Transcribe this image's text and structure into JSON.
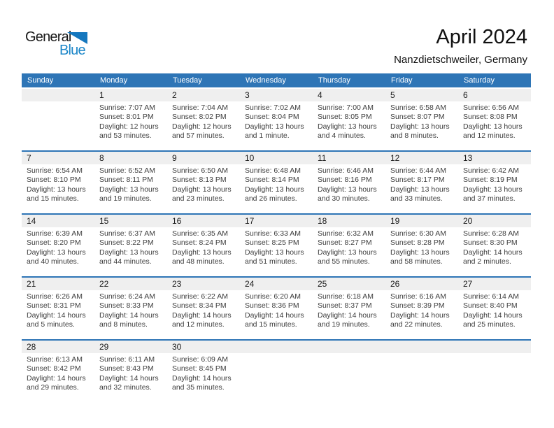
{
  "logo": {
    "general": "General",
    "blue": "Blue"
  },
  "header": {
    "title": "April 2024",
    "subtitle": "Nanzdietschweiler, Germany"
  },
  "colors": {
    "header_bg": "#2e75b6",
    "week_separator": "#2e75b6",
    "day_band_bg": "#efefef",
    "logo_blue": "#1b86c8",
    "logo_triangle": "#1577be"
  },
  "calendar": {
    "day_headers": [
      "Sunday",
      "Monday",
      "Tuesday",
      "Wednesday",
      "Thursday",
      "Friday",
      "Saturday"
    ],
    "weeks": [
      [
        {
          "day": "",
          "lines": []
        },
        {
          "day": "1",
          "lines": [
            "Sunrise: 7:07 AM",
            "Sunset: 8:01 PM",
            "Daylight: 12 hours",
            "and 53 minutes."
          ]
        },
        {
          "day": "2",
          "lines": [
            "Sunrise: 7:04 AM",
            "Sunset: 8:02 PM",
            "Daylight: 12 hours",
            "and 57 minutes."
          ]
        },
        {
          "day": "3",
          "lines": [
            "Sunrise: 7:02 AM",
            "Sunset: 8:04 PM",
            "Daylight: 13 hours",
            "and 1 minute."
          ]
        },
        {
          "day": "4",
          "lines": [
            "Sunrise: 7:00 AM",
            "Sunset: 8:05 PM",
            "Daylight: 13 hours",
            "and 4 minutes."
          ]
        },
        {
          "day": "5",
          "lines": [
            "Sunrise: 6:58 AM",
            "Sunset: 8:07 PM",
            "Daylight: 13 hours",
            "and 8 minutes."
          ]
        },
        {
          "day": "6",
          "lines": [
            "Sunrise: 6:56 AM",
            "Sunset: 8:08 PM",
            "Daylight: 13 hours",
            "and 12 minutes."
          ]
        }
      ],
      [
        {
          "day": "7",
          "lines": [
            "Sunrise: 6:54 AM",
            "Sunset: 8:10 PM",
            "Daylight: 13 hours",
            "and 15 minutes."
          ]
        },
        {
          "day": "8",
          "lines": [
            "Sunrise: 6:52 AM",
            "Sunset: 8:11 PM",
            "Daylight: 13 hours",
            "and 19 minutes."
          ]
        },
        {
          "day": "9",
          "lines": [
            "Sunrise: 6:50 AM",
            "Sunset: 8:13 PM",
            "Daylight: 13 hours",
            "and 23 minutes."
          ]
        },
        {
          "day": "10",
          "lines": [
            "Sunrise: 6:48 AM",
            "Sunset: 8:14 PM",
            "Daylight: 13 hours",
            "and 26 minutes."
          ]
        },
        {
          "day": "11",
          "lines": [
            "Sunrise: 6:46 AM",
            "Sunset: 8:16 PM",
            "Daylight: 13 hours",
            "and 30 minutes."
          ]
        },
        {
          "day": "12",
          "lines": [
            "Sunrise: 6:44 AM",
            "Sunset: 8:17 PM",
            "Daylight: 13 hours",
            "and 33 minutes."
          ]
        },
        {
          "day": "13",
          "lines": [
            "Sunrise: 6:42 AM",
            "Sunset: 8:19 PM",
            "Daylight: 13 hours",
            "and 37 minutes."
          ]
        }
      ],
      [
        {
          "day": "14",
          "lines": [
            "Sunrise: 6:39 AM",
            "Sunset: 8:20 PM",
            "Daylight: 13 hours",
            "and 40 minutes."
          ]
        },
        {
          "day": "15",
          "lines": [
            "Sunrise: 6:37 AM",
            "Sunset: 8:22 PM",
            "Daylight: 13 hours",
            "and 44 minutes."
          ]
        },
        {
          "day": "16",
          "lines": [
            "Sunrise: 6:35 AM",
            "Sunset: 8:24 PM",
            "Daylight: 13 hours",
            "and 48 minutes."
          ]
        },
        {
          "day": "17",
          "lines": [
            "Sunrise: 6:33 AM",
            "Sunset: 8:25 PM",
            "Daylight: 13 hours",
            "and 51 minutes."
          ]
        },
        {
          "day": "18",
          "lines": [
            "Sunrise: 6:32 AM",
            "Sunset: 8:27 PM",
            "Daylight: 13 hours",
            "and 55 minutes."
          ]
        },
        {
          "day": "19",
          "lines": [
            "Sunrise: 6:30 AM",
            "Sunset: 8:28 PM",
            "Daylight: 13 hours",
            "and 58 minutes."
          ]
        },
        {
          "day": "20",
          "lines": [
            "Sunrise: 6:28 AM",
            "Sunset: 8:30 PM",
            "Daylight: 14 hours",
            "and 2 minutes."
          ]
        }
      ],
      [
        {
          "day": "21",
          "lines": [
            "Sunrise: 6:26 AM",
            "Sunset: 8:31 PM",
            "Daylight: 14 hours",
            "and 5 minutes."
          ]
        },
        {
          "day": "22",
          "lines": [
            "Sunrise: 6:24 AM",
            "Sunset: 8:33 PM",
            "Daylight: 14 hours",
            "and 8 minutes."
          ]
        },
        {
          "day": "23",
          "lines": [
            "Sunrise: 6:22 AM",
            "Sunset: 8:34 PM",
            "Daylight: 14 hours",
            "and 12 minutes."
          ]
        },
        {
          "day": "24",
          "lines": [
            "Sunrise: 6:20 AM",
            "Sunset: 8:36 PM",
            "Daylight: 14 hours",
            "and 15 minutes."
          ]
        },
        {
          "day": "25",
          "lines": [
            "Sunrise: 6:18 AM",
            "Sunset: 8:37 PM",
            "Daylight: 14 hours",
            "and 19 minutes."
          ]
        },
        {
          "day": "26",
          "lines": [
            "Sunrise: 6:16 AM",
            "Sunset: 8:39 PM",
            "Daylight: 14 hours",
            "and 22 minutes."
          ]
        },
        {
          "day": "27",
          "lines": [
            "Sunrise: 6:14 AM",
            "Sunset: 8:40 PM",
            "Daylight: 14 hours",
            "and 25 minutes."
          ]
        }
      ],
      [
        {
          "day": "28",
          "lines": [
            "Sunrise: 6:13 AM",
            "Sunset: 8:42 PM",
            "Daylight: 14 hours",
            "and 29 minutes."
          ]
        },
        {
          "day": "29",
          "lines": [
            "Sunrise: 6:11 AM",
            "Sunset: 8:43 PM",
            "Daylight: 14 hours",
            "and 32 minutes."
          ]
        },
        {
          "day": "30",
          "lines": [
            "Sunrise: 6:09 AM",
            "Sunset: 8:45 PM",
            "Daylight: 14 hours",
            "and 35 minutes."
          ]
        },
        {
          "day": "",
          "lines": []
        },
        {
          "day": "",
          "lines": []
        },
        {
          "day": "",
          "lines": []
        },
        {
          "day": "",
          "lines": []
        }
      ]
    ]
  }
}
